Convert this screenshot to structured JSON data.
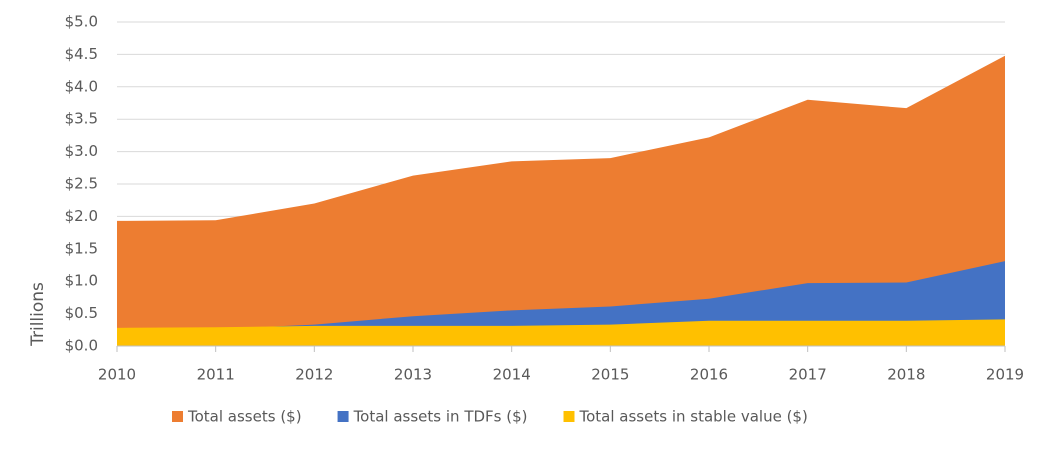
{
  "chart_data": {
    "type": "area",
    "y_label": "Trillions",
    "categories": [
      "2010",
      "2011",
      "2012",
      "2013",
      "2014",
      "2015",
      "2016",
      "2017",
      "2018",
      "2019"
    ],
    "series": [
      {
        "name": "Total assets ($)",
        "color": "#ED7D31",
        "values": [
          1.93,
          1.94,
          2.2,
          2.63,
          2.85,
          2.9,
          3.22,
          3.8,
          3.67,
          4.48
        ]
      },
      {
        "name": "Total assets in TDFs ($)",
        "color": "#4472C4",
        "values": [
          0.2,
          0.26,
          0.33,
          0.46,
          0.55,
          0.61,
          0.73,
          0.97,
          0.98,
          1.31
        ]
      },
      {
        "name": "Total assets in stable value ($)",
        "color": "#FFC000",
        "values": [
          0.28,
          0.29,
          0.31,
          0.31,
          0.31,
          0.33,
          0.39,
          0.39,
          0.39,
          0.41
        ]
      }
    ],
    "ylim": [
      0,
      5
    ],
    "yticks": [
      {
        "value": 0,
        "label": "$0.0"
      },
      {
        "value": 0.5,
        "label": "$0.5"
      },
      {
        "value": 1,
        "label": "$1.0"
      },
      {
        "value": 1.5,
        "label": "$1.5"
      },
      {
        "value": 2,
        "label": "$2.0"
      },
      {
        "value": 2.5,
        "label": "$2.5"
      },
      {
        "value": 3,
        "label": "$3.0"
      },
      {
        "value": 3.5,
        "label": "$3.5"
      },
      {
        "value": 4,
        "label": "$4.0"
      },
      {
        "value": 4.5,
        "label": "$4.5"
      },
      {
        "value": 5,
        "label": "$5.0"
      }
    ],
    "grid": true,
    "legend": "bottom"
  }
}
